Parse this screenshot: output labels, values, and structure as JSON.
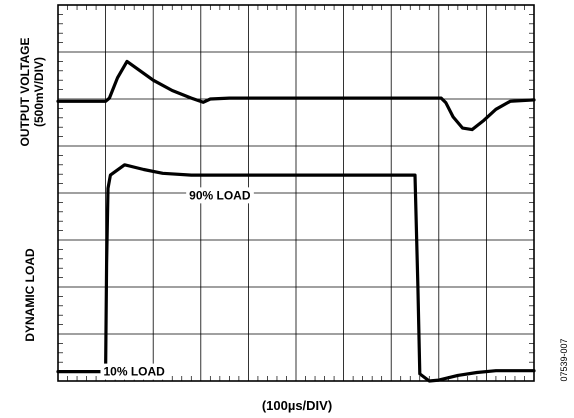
{
  "chart_data": {
    "type": "line",
    "title": "",
    "xlabel": "(100µs/DIV)",
    "ylabel_top": [
      "OUTPUT VOLTAGE",
      "(500mV/DIV)"
    ],
    "ylabel_bottom": "DYNAMIC LOAD",
    "figure_id": "07539-007",
    "x_divisions": 10,
    "y_divisions": 8,
    "grid": true,
    "x_unit_per_div": "100µs",
    "y_unit_per_div": "500mV",
    "annotations": [
      {
        "text": "90% LOAD",
        "x": 3.4,
        "y": 3.95
      },
      {
        "text": "10% LOAD",
        "x": 1.6,
        "y": 0.2
      }
    ],
    "series": [
      {
        "name": "OUTPUT VOLTAGE",
        "x": [
          0,
          1.0,
          1.08,
          1.25,
          1.45,
          1.7,
          2.0,
          2.4,
          2.8,
          3.05,
          3.2,
          3.6,
          4.5,
          6.0,
          7.5,
          8.05,
          8.15,
          8.3,
          8.5,
          8.7,
          8.95,
          9.2,
          9.5,
          10
        ],
        "y": [
          5.95,
          5.95,
          6.02,
          6.45,
          6.8,
          6.62,
          6.4,
          6.18,
          6.02,
          5.93,
          6.0,
          6.02,
          6.02,
          6.02,
          6.02,
          6.02,
          5.92,
          5.62,
          5.38,
          5.35,
          5.55,
          5.78,
          5.95,
          5.98
        ]
      },
      {
        "name": "DYNAMIC LOAD",
        "x": [
          0,
          1.0,
          1.02,
          1.05,
          1.1,
          1.4,
          1.8,
          2.2,
          2.8,
          3.5,
          5.0,
          6.5,
          7.0,
          7.5,
          7.56,
          7.6,
          7.8,
          8.0,
          8.4,
          8.8,
          9.2,
          10
        ],
        "y": [
          0.2,
          0.2,
          2.5,
          4.1,
          4.38,
          4.6,
          4.5,
          4.42,
          4.38,
          4.38,
          4.38,
          4.38,
          4.38,
          4.38,
          2.0,
          0.15,
          0.0,
          0.02,
          0.12,
          0.18,
          0.22,
          0.22
        ]
      }
    ]
  }
}
